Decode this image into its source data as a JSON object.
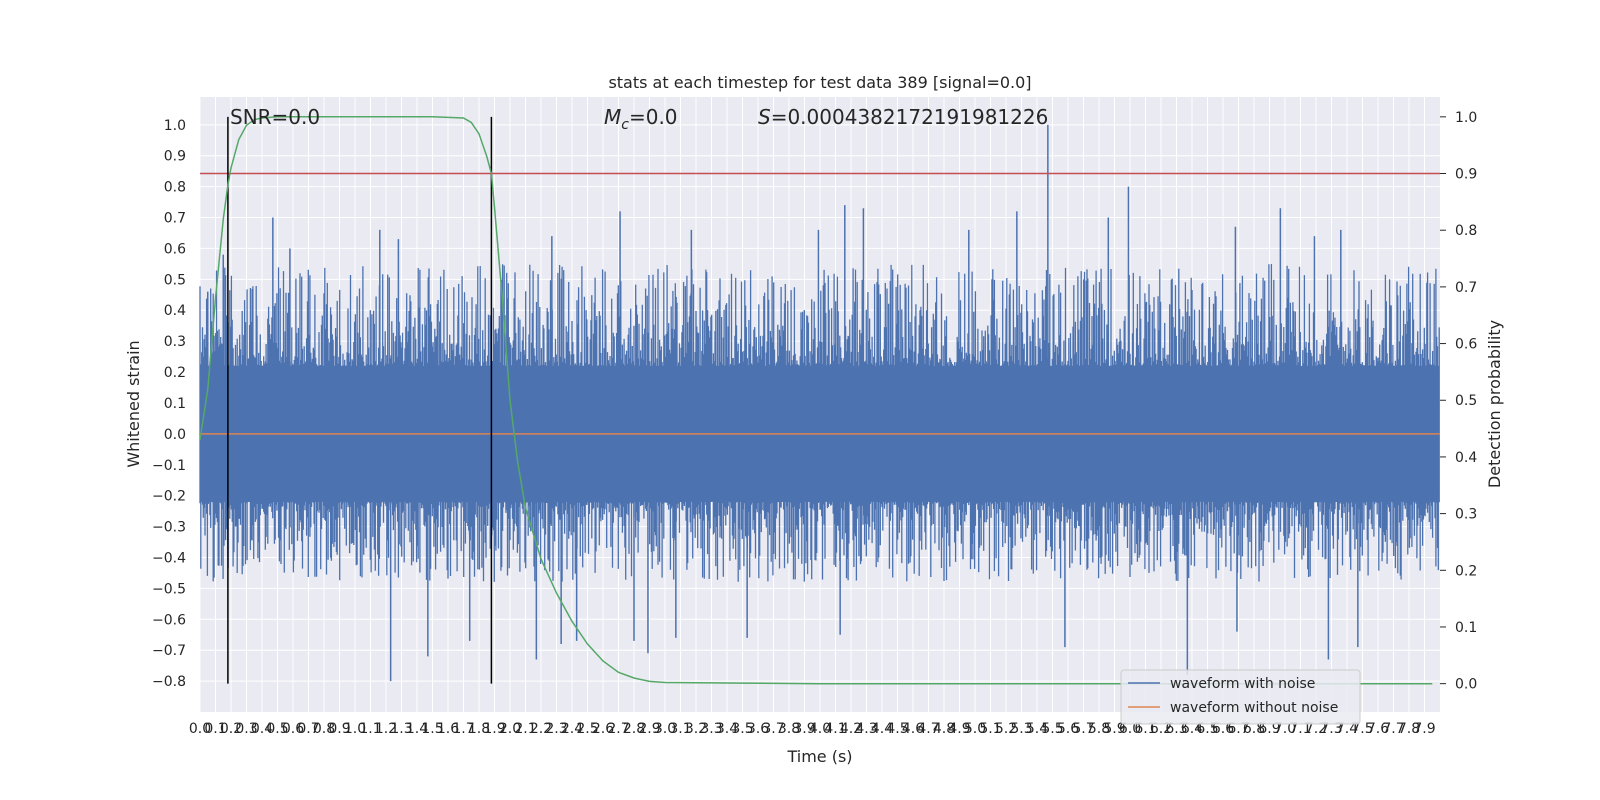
{
  "chart_data": {
    "type": "line",
    "title": "stats at each timestep for test data 389 [signal=0.0]",
    "xlabel": "Time (s)",
    "ylabel": "Whitened strain",
    "y2label": "Detection probability",
    "xlim": [
      0.0,
      8.0
    ],
    "ylim": [
      -0.9,
      1.09
    ],
    "y2lim": [
      -0.05,
      1.035
    ],
    "grid": true,
    "legend_position": "lower-right",
    "x_ticks": [
      "0.0",
      "0.1",
      "0.2",
      "0.3",
      "0.4",
      "0.5",
      "0.6",
      "0.7",
      "0.8",
      "0.9",
      "1.0",
      "1.1",
      "1.2",
      "1.3",
      "1.4",
      "1.5",
      "1.6",
      "1.7",
      "1.8",
      "1.9",
      "2.0",
      "2.1",
      "2.2",
      "2.3",
      "2.4",
      "2.5",
      "2.6",
      "2.7",
      "2.8",
      "2.9",
      "3.0",
      "3.1",
      "3.2",
      "3.3",
      "3.4",
      "3.5",
      "3.6",
      "3.7",
      "3.8",
      "3.9",
      "4.0",
      "4.1",
      "4.2",
      "4.3",
      "4.4",
      "4.5",
      "4.6",
      "4.7",
      "4.8",
      "4.9",
      "5.0",
      "5.1",
      "5.2",
      "5.3",
      "5.4",
      "5.5",
      "5.6",
      "5.7",
      "5.8",
      "5.9",
      "6.0",
      "6.1",
      "6.2",
      "6.3",
      "6.4",
      "6.5",
      "6.6",
      "6.7",
      "6.8",
      "6.9",
      "7.0",
      "7.1",
      "7.2",
      "7.3",
      "7.4",
      "7.5",
      "7.6",
      "7.7",
      "7.8",
      "7.9"
    ],
    "y_ticks": [
      "-0.8",
      "-0.7",
      "-0.6",
      "-0.5",
      "-0.4",
      "-0.3",
      "-0.2",
      "-0.1",
      "0.0",
      "0.1",
      "0.2",
      "0.3",
      "0.4",
      "0.5",
      "0.6",
      "0.7",
      "0.8",
      "0.9",
      "1.0"
    ],
    "y2_ticks": [
      "0.0",
      "0.1",
      "0.2",
      "0.3",
      "0.4",
      "0.5",
      "0.6",
      "0.7",
      "0.8",
      "0.9",
      "1.0"
    ],
    "annotations": {
      "snr": "SNR=0.0",
      "mc_symbol": "M",
      "mc_sub": "c",
      "mc_value": "=0.0",
      "s_symbol": "S",
      "s_value": "=0.0004382172191981226"
    },
    "vertical_markers": [
      0.18,
      1.88
    ],
    "threshold_probability": 0.9,
    "series": [
      {
        "name": "waveform with noise",
        "color": "#4c72b0",
        "axis": "left",
        "band_min": -0.48,
        "band_max": 0.55,
        "peaks": [
          {
            "x": 0.05,
            "y": 0.46
          },
          {
            "x": 0.15,
            "y": 0.58
          },
          {
            "x": 0.47,
            "y": 0.7
          },
          {
            "x": 0.58,
            "y": 0.6
          },
          {
            "x": 1.16,
            "y": 0.66
          },
          {
            "x": 1.28,
            "y": 0.63
          },
          {
            "x": 2.27,
            "y": 0.64
          },
          {
            "x": 2.71,
            "y": 0.72
          },
          {
            "x": 3.17,
            "y": 0.66
          },
          {
            "x": 3.99,
            "y": 0.66
          },
          {
            "x": 4.16,
            "y": 0.74
          },
          {
            "x": 4.28,
            "y": 0.73
          },
          {
            "x": 4.96,
            "y": 0.66
          },
          {
            "x": 5.27,
            "y": 0.72
          },
          {
            "x": 5.47,
            "y": 1.0
          },
          {
            "x": 5.86,
            "y": 0.7
          },
          {
            "x": 5.99,
            "y": 0.8
          },
          {
            "x": 6.68,
            "y": 0.67
          },
          {
            "x": 6.97,
            "y": 0.73
          },
          {
            "x": 7.19,
            "y": 0.64
          },
          {
            "x": 7.36,
            "y": 0.66
          }
        ],
        "troughs": [
          {
            "x": 1.23,
            "y": -0.8
          },
          {
            "x": 1.47,
            "y": -0.72
          },
          {
            "x": 1.74,
            "y": -0.67
          },
          {
            "x": 2.17,
            "y": -0.73
          },
          {
            "x": 2.33,
            "y": -0.68
          },
          {
            "x": 2.43,
            "y": -0.67
          },
          {
            "x": 2.8,
            "y": -0.67
          },
          {
            "x": 2.89,
            "y": -0.71
          },
          {
            "x": 3.07,
            "y": -0.66
          },
          {
            "x": 3.53,
            "y": -0.66
          },
          {
            "x": 4.13,
            "y": -0.65
          },
          {
            "x": 5.58,
            "y": -0.69
          },
          {
            "x": 6.37,
            "y": -0.78
          },
          {
            "x": 6.69,
            "y": -0.64
          },
          {
            "x": 7.28,
            "y": -0.73
          },
          {
            "x": 7.47,
            "y": -0.69
          }
        ]
      },
      {
        "name": "waveform without noise",
        "color": "#dd8452",
        "axis": "left",
        "x": [
          0.0,
          8.0
        ],
        "y": [
          0.0,
          0.0
        ]
      },
      {
        "name": "detection probability",
        "color": "#55a868",
        "axis": "right",
        "x": [
          0.0,
          0.05,
          0.1,
          0.15,
          0.18,
          0.2,
          0.25,
          0.3,
          0.35,
          0.4,
          0.5,
          1.0,
          1.5,
          1.7,
          1.75,
          1.8,
          1.85,
          1.88,
          1.9,
          1.95,
          2.0,
          2.05,
          2.1,
          2.2,
          2.3,
          2.4,
          2.5,
          2.6,
          2.7,
          2.8,
          2.9,
          3.0,
          3.5,
          4.0,
          5.0,
          6.0,
          7.0,
          7.95
        ],
        "y": [
          0.43,
          0.52,
          0.68,
          0.82,
          0.88,
          0.91,
          0.96,
          0.985,
          0.995,
          0.998,
          1.0,
          1.0,
          1.0,
          0.998,
          0.99,
          0.97,
          0.93,
          0.9,
          0.84,
          0.68,
          0.5,
          0.39,
          0.31,
          0.22,
          0.16,
          0.11,
          0.07,
          0.04,
          0.02,
          0.01,
          0.004,
          0.002,
          0.001,
          0.0,
          0.0,
          0.0,
          0.0,
          0.0
        ]
      }
    ]
  }
}
